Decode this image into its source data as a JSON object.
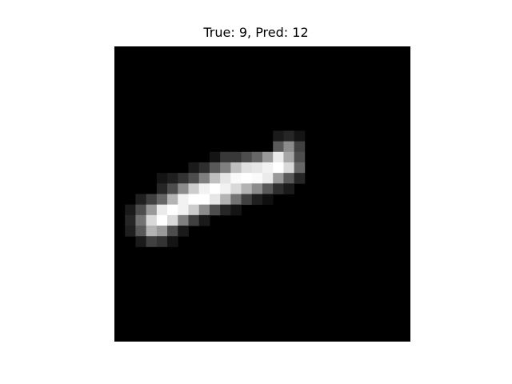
{
  "figure": {
    "title": "True: 9, Pred: 12"
  },
  "image": {
    "description": "28x28 grayscale image",
    "grid_size": 28,
    "background_color": "#000000",
    "colormap": "gray",
    "pixels": [
      [
        14,
        7,
        0.1
      ],
      [
        15,
        7,
        0.15
      ],
      [
        16,
        7,
        0.08
      ],
      [
        14,
        8,
        0.35
      ],
      [
        15,
        8,
        0.55
      ],
      [
        16,
        8,
        0.25
      ],
      [
        8,
        9,
        0.08
      ],
      [
        9,
        9,
        0.22
      ],
      [
        10,
        9,
        0.22
      ],
      [
        11,
        9,
        0.3
      ],
      [
        12,
        9,
        0.4
      ],
      [
        13,
        9,
        0.6
      ],
      [
        14,
        9,
        0.92
      ],
      [
        15,
        9,
        0.65
      ],
      [
        16,
        9,
        0.3
      ],
      [
        6,
        10,
        0.1
      ],
      [
        7,
        10,
        0.18
      ],
      [
        8,
        10,
        0.35
      ],
      [
        9,
        10,
        0.5
      ],
      [
        10,
        10,
        0.75
      ],
      [
        11,
        10,
        0.88
      ],
      [
        12,
        10,
        0.9
      ],
      [
        13,
        10,
        0.95
      ],
      [
        14,
        10,
        1.0
      ],
      [
        15,
        10,
        0.85
      ],
      [
        16,
        10,
        0.4
      ],
      [
        3,
        11,
        0.08
      ],
      [
        4,
        11,
        0.12
      ],
      [
        5,
        11,
        0.2
      ],
      [
        6,
        11,
        0.3
      ],
      [
        7,
        11,
        0.5
      ],
      [
        8,
        11,
        0.75
      ],
      [
        9,
        11,
        0.9
      ],
      [
        10,
        11,
        0.98
      ],
      [
        11,
        11,
        1.0
      ],
      [
        12,
        11,
        0.98
      ],
      [
        13,
        11,
        0.92
      ],
      [
        14,
        11,
        0.6
      ],
      [
        15,
        11,
        0.35
      ],
      [
        16,
        11,
        0.15
      ],
      [
        3,
        12,
        0.15
      ],
      [
        4,
        12,
        0.3
      ],
      [
        5,
        12,
        0.55
      ],
      [
        6,
        12,
        0.8
      ],
      [
        7,
        12,
        0.95
      ],
      [
        8,
        12,
        1.0
      ],
      [
        9,
        12,
        0.95
      ],
      [
        10,
        12,
        0.85
      ],
      [
        11,
        12,
        0.7
      ],
      [
        12,
        12,
        0.55
      ],
      [
        13,
        12,
        0.35
      ],
      [
        14,
        12,
        0.18
      ],
      [
        15,
        12,
        0.1
      ],
      [
        1,
        13,
        0.12
      ],
      [
        2,
        13,
        0.25
      ],
      [
        3,
        13,
        0.4
      ],
      [
        4,
        13,
        0.7
      ],
      [
        5,
        13,
        0.95
      ],
      [
        6,
        13,
        1.0
      ],
      [
        7,
        13,
        1.0
      ],
      [
        8,
        13,
        0.9
      ],
      [
        9,
        13,
        0.7
      ],
      [
        10,
        13,
        0.45
      ],
      [
        11,
        13,
        0.25
      ],
      [
        12,
        13,
        0.12
      ],
      [
        13,
        13,
        0.06
      ],
      [
        0,
        14,
        0.1
      ],
      [
        1,
        14,
        0.3
      ],
      [
        2,
        14,
        0.6
      ],
      [
        3,
        14,
        0.92
      ],
      [
        4,
        14,
        1.0
      ],
      [
        5,
        14,
        0.95
      ],
      [
        6,
        14,
        0.8
      ],
      [
        7,
        14,
        0.55
      ],
      [
        8,
        14,
        0.3
      ],
      [
        9,
        14,
        0.15
      ],
      [
        10,
        14,
        0.08
      ],
      [
        0,
        15,
        0.15
      ],
      [
        1,
        15,
        0.45
      ],
      [
        2,
        15,
        0.85
      ],
      [
        3,
        15,
        1.0
      ],
      [
        4,
        15,
        0.85
      ],
      [
        5,
        15,
        0.5
      ],
      [
        6,
        15,
        0.25
      ],
      [
        7,
        15,
        0.1
      ],
      [
        0,
        16,
        0.12
      ],
      [
        1,
        16,
        0.35
      ],
      [
        2,
        16,
        0.7
      ],
      [
        3,
        16,
        0.6
      ],
      [
        4,
        16,
        0.3
      ],
      [
        5,
        16,
        0.1
      ],
      [
        1,
        17,
        0.1
      ],
      [
        2,
        17,
        0.25
      ],
      [
        3,
        17,
        0.2
      ],
      [
        4,
        17,
        0.08
      ]
    ]
  }
}
